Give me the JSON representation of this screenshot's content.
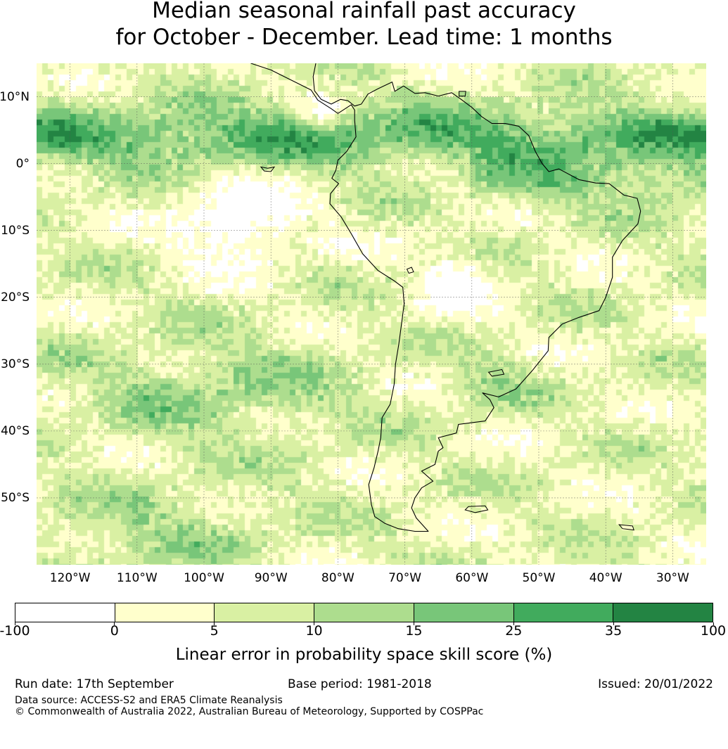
{
  "title": {
    "line1": "Median seasonal rainfall past accuracy",
    "line2": "for October - December. Lead time: 1 months"
  },
  "map": {
    "region": "South America",
    "lon_range": [
      -125,
      -25
    ],
    "lat_range": [
      -60,
      15
    ],
    "latitude_labels": [
      "10°N",
      "0°",
      "10°S",
      "20°S",
      "30°S",
      "40°S",
      "50°S"
    ],
    "latitude_values": [
      10,
      0,
      -10,
      -20,
      -30,
      -40,
      -50
    ],
    "longitude_labels": [
      "120°W",
      "110°W",
      "100°W",
      "90°W",
      "80°W",
      "70°W",
      "60°W",
      "50°W",
      "40°W",
      "30°W"
    ],
    "longitude_values": [
      -120,
      -110,
      -100,
      -90,
      -80,
      -70,
      -60,
      -50,
      -40,
      -30
    ],
    "gridlines": true,
    "coastline_color": "#000000"
  },
  "colorbar": {
    "tick_labels": [
      "-100",
      "0",
      "5",
      "10",
      "15",
      "25",
      "35",
      "100"
    ],
    "colors": [
      "#ffffff",
      "#ffffcc",
      "#d9f0a3",
      "#addd8e",
      "#78c679",
      "#41ab5d",
      "#238443"
    ],
    "label": "Linear error in probability space skill score (%)"
  },
  "footer": {
    "run_date": "Run date: 17th September",
    "base_period": "Base period: 1981-2018",
    "issued": "Issued: 20/01/2022",
    "data_source": "Data source: ACCESS-S2 and ERA5 Climate Reanalysis",
    "copyright": "© Commonwealth of Australia 2022, Australian Bureau of Meteorology, Supported by COSPPac"
  }
}
